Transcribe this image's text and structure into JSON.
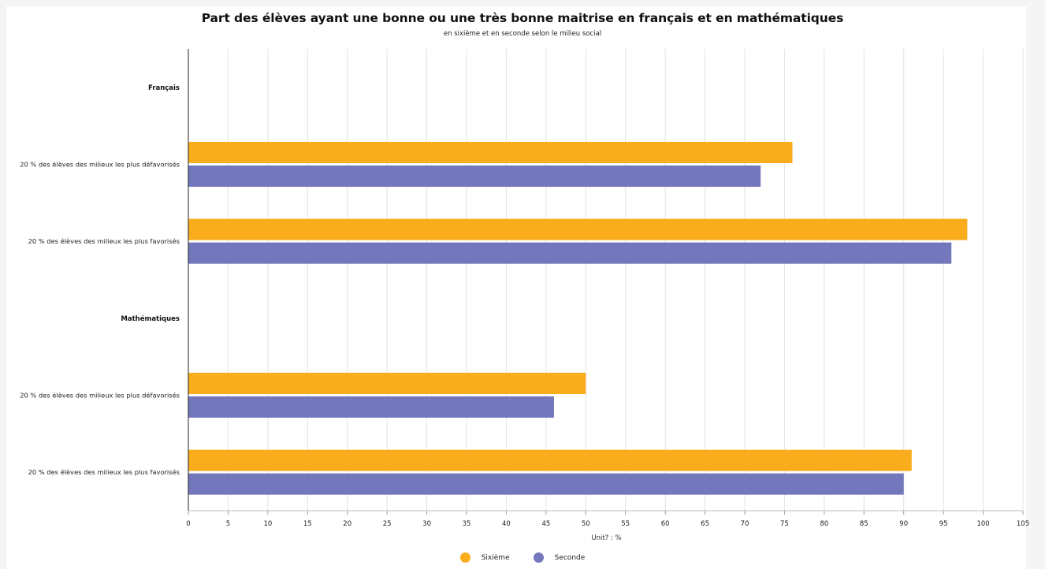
{
  "chart_data": {
    "type": "bar",
    "orientation": "horizontal",
    "title": "Part des élèves ayant une bonne ou une très bonne maitrise en français et en mathématiques",
    "subtitle": "en sixième et en seconde selon le milieu social",
    "groups": [
      {
        "label": "Français",
        "categories": [
          "20 % des élèves des milieux les plus défavorisés",
          "20 % des élèves des milieux les plus favorisés"
        ]
      },
      {
        "label": "Mathématiques",
        "categories": [
          "20 % des élèves des milieux les plus défavorisés",
          "20 % des élèves des milieux les plus favorisés"
        ]
      }
    ],
    "series": [
      {
        "name": "Sixième",
        "color": "#f9ad1c",
        "values": [
          76,
          98,
          50,
          91
        ]
      },
      {
        "name": "Seconde",
        "color": "#7377bb",
        "values": [
          72,
          96,
          46,
          90
        ]
      }
    ],
    "xlim": [
      0,
      105
    ],
    "xticks": [
      0,
      5,
      10,
      15,
      20,
      25,
      30,
      35,
      40,
      45,
      50,
      55,
      60,
      65,
      70,
      75,
      80,
      85,
      90,
      95,
      100,
      105
    ],
    "xlabel": "Unit? : %",
    "ylabel": "",
    "grid": true,
    "legend_position": "bottom-center"
  }
}
